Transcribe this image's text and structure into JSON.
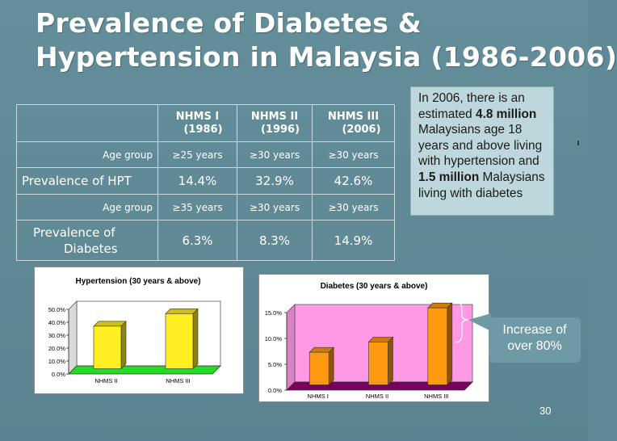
{
  "slide": {
    "title_line1": "Prevalence of Diabetes &",
    "title_line2": "Hypertension in Malaysia (1986-2006)",
    "page_number": "30"
  },
  "callout": {
    "text_1": "In 2006, there is an estimated ",
    "bold_1": "4.8 million",
    "text_2": " Malaysians age 18 years and above living with hypertension and ",
    "bold_2": "1.5 million",
    "text_3": " Malaysians living with diabetes"
  },
  "increase_note": {
    "line1": "Increase of",
    "line2": "over 80%"
  },
  "table": {
    "headers": [
      {
        "line1": "NHMS I",
        "line2": "(1986)"
      },
      {
        "line1": "NHMS II",
        "line2": "(1996)"
      },
      {
        "line1": "NHMS III",
        "line2": "(2006)"
      }
    ],
    "rows": [
      {
        "label": "Age group",
        "cells": [
          "≥25 years",
          "≥30 years",
          "≥30 years"
        ]
      },
      {
        "label": "Prevalence of HPT",
        "cells": [
          "14.4%",
          "32.9%",
          "42.6%"
        ]
      },
      {
        "label": "Age group",
        "cells": [
          "≥35 years",
          "≥30 years",
          "≥30 years"
        ]
      },
      {
        "label_line1": "Prevalence of",
        "label_line2": "Diabetes",
        "cells": [
          "6.3%",
          "8.3%",
          "14.9%"
        ]
      }
    ]
  },
  "colors": {
    "slide_bg": "#5f8a96",
    "hpt_plot_bg": "#ffffff",
    "hpt_floor": "#22dd22",
    "diab_plot_bg": "#ff99e6",
    "diab_floor": "#7a0060",
    "hpt_bar": "#ffee22",
    "diab_bar": "#ff9911"
  },
  "chart_data": [
    {
      "type": "bar",
      "title": "Hypertension (30 years & above)",
      "categories": [
        "NHMS II",
        "NHMS III"
      ],
      "values": [
        32.9,
        42.6
      ],
      "ylim": [
        0,
        50
      ],
      "yticks": [
        "0.0%",
        "10.0%",
        "20.0%",
        "30.0%",
        "40.0%",
        "50.0%"
      ],
      "grid": false,
      "legend": false
    },
    {
      "type": "bar",
      "title": "Diabetes  (30 years & above)",
      "categories": [
        "NHMS I",
        "NHMS II",
        "NHMS III"
      ],
      "values": [
        6.3,
        8.3,
        14.9
      ],
      "ylim": [
        0,
        15
      ],
      "yticks": [
        "0.0%",
        "5.0%",
        "10.0%",
        "15.0%"
      ],
      "grid": false,
      "legend": false
    }
  ]
}
